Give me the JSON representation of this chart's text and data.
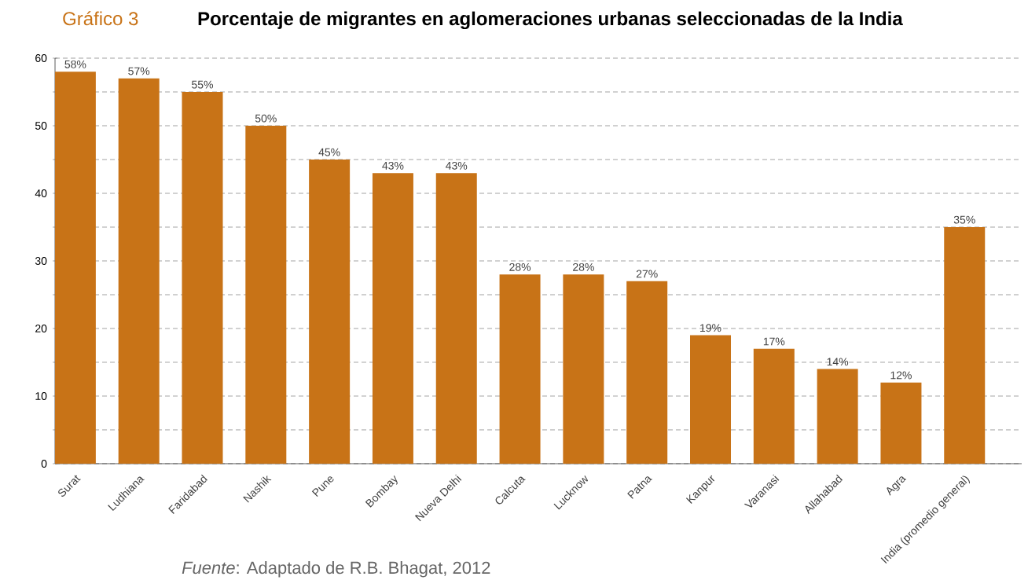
{
  "chart_data": {
    "type": "bar",
    "title": "Porcentaje de migrantes en aglomeraciones urbanas seleccionadas de la India",
    "annotations": [
      "Gráfico 3",
      "*Fuente*:  Adaptado de R.B. Bhagat, 2012"
    ],
    "categories": [
      "Surat",
      "Ludhiana",
      "Faridabad",
      "Nashik",
      "Pune",
      "Bombay",
      "Nueva Delhi",
      "Calcuta",
      "Lucknow",
      "Patna",
      "Kanpur",
      "Varanasi",
      "Allahabad",
      "Agra",
      "India (promedio general)"
    ],
    "values": [
      58,
      57,
      55,
      50,
      45,
      43,
      43,
      28,
      28,
      27,
      19,
      17,
      14,
      12,
      35
    ],
    "value_labels": [
      "58%",
      "57%",
      "55%",
      "50%",
      "45%",
      "43%",
      "43%",
      "28%",
      "28%",
      "27%",
      "19%",
      "17%",
      "14%",
      "12%",
      "35%"
    ],
    "color": "#c87317",
    "ylim": [
      0,
      60
    ],
    "yticks": [
      0,
      {
        "value": 5,
        "label": null
      },
      10,
      {
        "value": 15,
        "label": null
      },
      20,
      {
        "value": 25,
        "label": null
      },
      30,
      {
        "value": 35,
        "label": null
      },
      40,
      {
        "value": 45,
        "label": null
      },
      50,
      {
        "value": 55,
        "label": null
      },
      60
    ],
    "grid": "y"
  }
}
